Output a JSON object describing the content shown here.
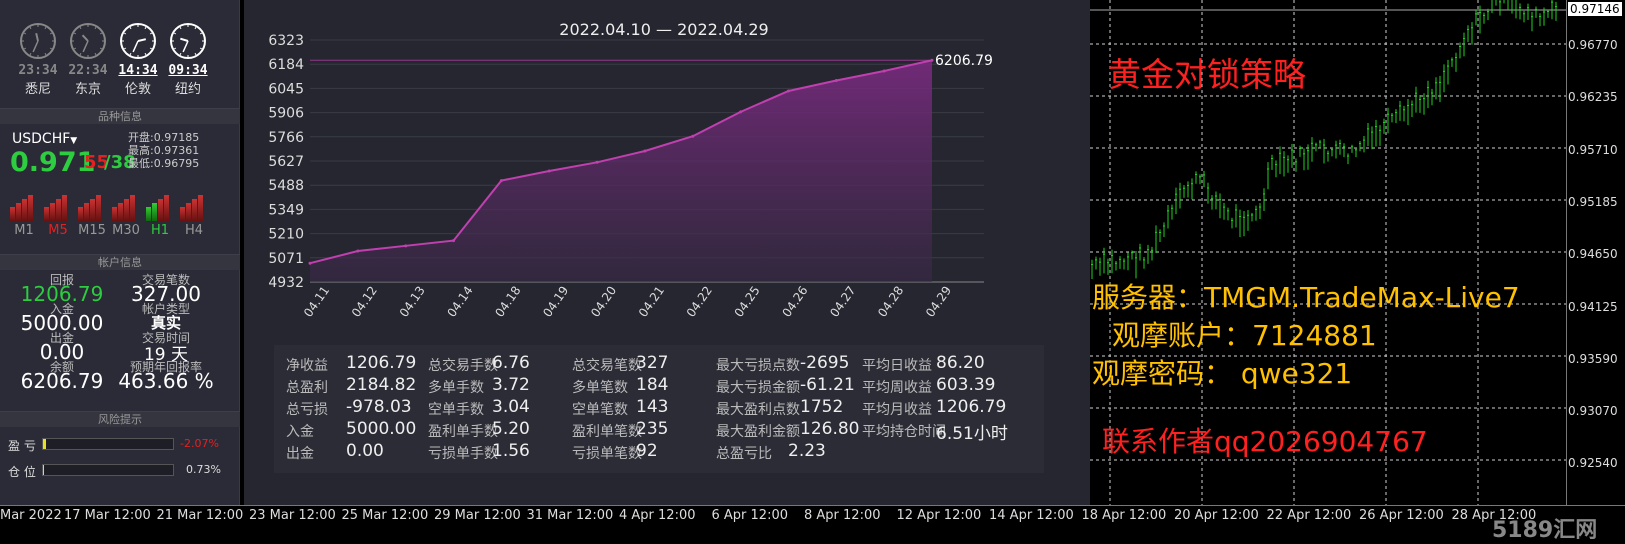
{
  "clocks": [
    {
      "time": "23:34",
      "city": "悉尼",
      "active": false
    },
    {
      "time": "22:34",
      "city": "东京",
      "active": false
    },
    {
      "time": "14:34",
      "city": "伦敦",
      "active": true
    },
    {
      "time": "09:34",
      "city": "纽约",
      "active": true
    }
  ],
  "symbol": {
    "section_title": "品种信息",
    "name": "USDCHF",
    "price_main": "0.971",
    "price_frac": "55",
    "price_sup": "38",
    "open_label": "开盘:",
    "open": "0.97185",
    "high_label": "最高:",
    "high": "0.97361",
    "low_label": "最低:",
    "low": "0.96795",
    "timeframes": [
      "M1",
      "M5",
      "M15",
      "M30",
      "H1",
      "H4"
    ]
  },
  "account": {
    "section_title": "帐户信息",
    "return_label": "回报",
    "return_value": "1206.79",
    "trades_label": "交易笔数",
    "trades_value": "327.00",
    "deposit_label": "入金",
    "deposit_value": "5000.00",
    "acct_type_label": "帐户类型",
    "acct_type_value": "真实",
    "withdraw_label": "出金",
    "withdraw_value": "0.00",
    "trade_time_label": "交易时间",
    "trade_time_value": "19 天",
    "balance_label": "余额",
    "balance_value": "6206.79",
    "annual_label": "预期年回报率",
    "annual_value": "463.66 %"
  },
  "risk": {
    "section_title": "风险提示",
    "pnl_label": "盈 亏",
    "pnl_value": "-2.07%",
    "pnl_fraction": 0.02,
    "position_label": "仓 位",
    "position_value": "0.73%",
    "position_fraction": 0.01
  },
  "chart_data": {
    "type": "area",
    "title": "2022.04.10 — 2022.04.29",
    "categories": [
      "04.11",
      "04.12",
      "04.13",
      "04.14",
      "04.18",
      "04.19",
      "04.20",
      "04.21",
      "04.22",
      "04.25",
      "04.26",
      "04.27",
      "04.28",
      "04.29"
    ],
    "values": [
      5040,
      5110,
      5140,
      5170,
      5515,
      5570,
      5620,
      5685,
      5770,
      5910,
      6030,
      6090,
      6145,
      6206.79
    ],
    "yticks": [
      "6323",
      "6184",
      "6045",
      "5906",
      "5766",
      "5627",
      "5488",
      "5349",
      "5210",
      "5071",
      "4932"
    ],
    "ylim": [
      4932,
      6323
    ],
    "end_label": "6206.79",
    "color": "#c040b0"
  },
  "stats": [
    [
      {
        "k": "净收益",
        "v": "1206.79"
      },
      {
        "k": "总盈利",
        "v": "2184.82"
      },
      {
        "k": "总亏损",
        "v": "-978.03"
      },
      {
        "k": "入金",
        "v": "5000.00"
      },
      {
        "k": "出金",
        "v": "0.00"
      }
    ],
    [
      {
        "k": "总交易手数",
        "v": "6.76"
      },
      {
        "k": "多单手数",
        "v": "3.72"
      },
      {
        "k": "空单手数",
        "v": "3.04"
      },
      {
        "k": "盈利单手数",
        "v": "5.20"
      },
      {
        "k": "亏损单手数",
        "v": "1.56"
      }
    ],
    [
      {
        "k": "总交易笔数",
        "v": "327"
      },
      {
        "k": "多单笔数",
        "v": "184"
      },
      {
        "k": "空单笔数",
        "v": "143"
      },
      {
        "k": "盈利单笔数",
        "v": "235"
      },
      {
        "k": "亏损单笔数",
        "v": "92"
      }
    ],
    [
      {
        "k": "最大亏损点数",
        "v": "-2695"
      },
      {
        "k": "最大亏损金额",
        "v": "-61.21"
      },
      {
        "k": "最大盈利点数",
        "v": "1752"
      },
      {
        "k": "最大盈利金额",
        "v": "126.80"
      },
      {
        "k": "总盈亏比",
        "v": "2.23"
      }
    ],
    [
      {
        "k": "平均日收益",
        "v": "86.20"
      },
      {
        "k": "平均周收益",
        "v": "603.39"
      },
      {
        "k": "平均月收益",
        "v": "1206.79"
      },
      {
        "k": "平均持仓时间",
        "v": "6.51小时"
      }
    ]
  ],
  "mt4": {
    "current_price": "0.97146",
    "prices": [
      "0.96770",
      "0.96235",
      "0.95710",
      "0.95185",
      "0.94650",
      "0.94125",
      "0.93590",
      "0.93070",
      "0.92540",
      "0.92015"
    ],
    "dates": [
      "Mar 2022",
      "17 Mar 12:00",
      "21 Mar 12:00",
      "23 Mar 12:00",
      "25 Mar 12:00",
      "29 Mar 12:00",
      "31 Mar 12:00",
      "4 Apr 12:00",
      "6 Apr 12:00",
      "8 Apr 12:00",
      "12 Apr 12:00",
      "14 Apr 12:00",
      "18 Apr 12:00",
      "20 Apr 12:00",
      "22 Apr 12:00",
      "26 Apr 12:00",
      "28 Apr 12:00"
    ]
  },
  "overlay": {
    "title": "黄金对锁策略",
    "server": "服务器：TMGM.TradeMax-Live7",
    "account": "观摩账户：7124881",
    "password": "观摩密码：  qwe321",
    "contact": "联系作者qq2026904767",
    "watermark": "5189汇网",
    "title_color": "#ff2020",
    "info_color": "#ffc000"
  }
}
